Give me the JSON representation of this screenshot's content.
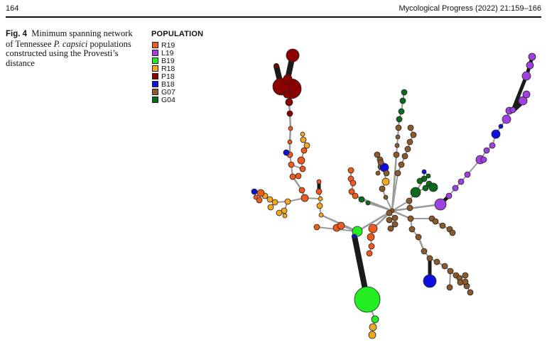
{
  "header": {
    "page_number": "164",
    "journal": "Mycological Progress (2022) 21:159–166"
  },
  "caption": {
    "label": "Fig. 4",
    "text_before": "Minimum spanning network of Tennessee ",
    "species": "P. capsici",
    "text_after": " populations constructed using the Provesti’s distance"
  },
  "legend": {
    "title": "POPULATION",
    "items": [
      {
        "label": "R19",
        "color": "#f05a1e"
      },
      {
        "label": "L19",
        "color": "#a040e0"
      },
      {
        "label": "B19",
        "color": "#22ee22"
      },
      {
        "label": "R18",
        "color": "#f5a623"
      },
      {
        "label": "P18",
        "color": "#8b0000"
      },
      {
        "label": "B18",
        "color": "#1010dd"
      },
      {
        "label": "G07",
        "color": "#8b5a2b"
      },
      {
        "label": "G04",
        "color": "#0a6b1a"
      }
    ]
  }
}
